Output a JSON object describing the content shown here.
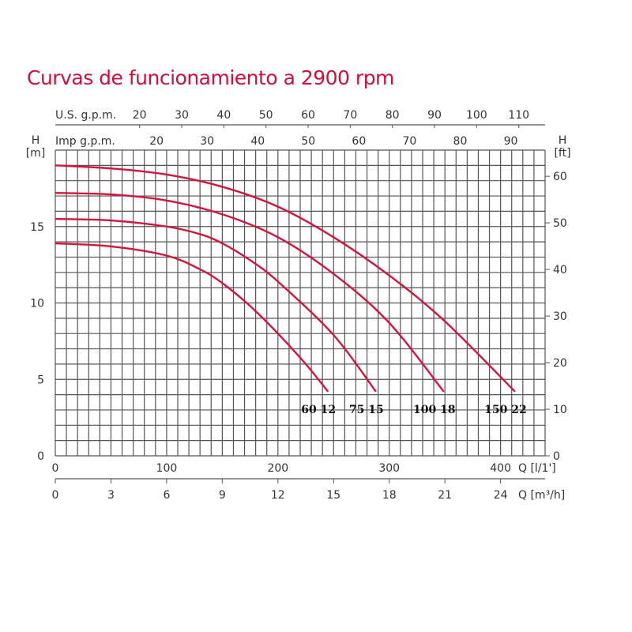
{
  "chart_data": {
    "type": "line",
    "title": "Curvas de funcionamiento a 2900 rpm",
    "x_axes": {
      "q_lmin": {
        "label": "Q [l/1']",
        "ticks": [
          0,
          100,
          200,
          300,
          400
        ],
        "range": [
          0,
          440
        ]
      },
      "q_m3h": {
        "label": "Q [m³/h]",
        "ticks": [
          0,
          3,
          6,
          9,
          12,
          15,
          18,
          21,
          24
        ]
      },
      "us_gpm": {
        "label": "U.S. g.p.m.",
        "ticks": [
          20,
          30,
          40,
          50,
          60,
          70,
          80,
          90,
          100,
          110
        ]
      },
      "imp_gpm": {
        "label": "Imp g.p.m.",
        "ticks": [
          20,
          30,
          40,
          50,
          60,
          70,
          80,
          90
        ]
      }
    },
    "y_axes": {
      "left": {
        "label_top": "H",
        "label_unit": "[m]",
        "ticks": [
          0,
          5,
          10,
          15
        ],
        "range": [
          0,
          20
        ]
      },
      "right": {
        "label_top": "H",
        "label_unit": "[ft]",
        "ticks": [
          0,
          10,
          20,
          30,
          40,
          50,
          60
        ]
      }
    },
    "grid": true,
    "curve_color": "#d4143c",
    "series": [
      {
        "name": "60 12",
        "points": [
          [
            0,
            13.9
          ],
          [
            50,
            13.7
          ],
          [
            100,
            13.1
          ],
          [
            130,
            12.2
          ],
          [
            150,
            11.3
          ],
          [
            175,
            9.8
          ],
          [
            200,
            8.0
          ],
          [
            225,
            6.0
          ],
          [
            245,
            4.2
          ]
        ]
      },
      {
        "name": "75 15",
        "points": [
          [
            0,
            15.5
          ],
          [
            50,
            15.4
          ],
          [
            100,
            15.0
          ],
          [
            130,
            14.5
          ],
          [
            150,
            13.9
          ],
          [
            175,
            12.8
          ],
          [
            200,
            11.4
          ],
          [
            250,
            7.9
          ],
          [
            288,
            4.2
          ]
        ]
      },
      {
        "name": "100 18",
        "points": [
          [
            0,
            17.2
          ],
          [
            50,
            17.1
          ],
          [
            100,
            16.7
          ],
          [
            150,
            15.8
          ],
          [
            200,
            14.3
          ],
          [
            250,
            11.9
          ],
          [
            300,
            8.7
          ],
          [
            349,
            4.2
          ]
        ]
      },
      {
        "name": "150 22",
        "points": [
          [
            0,
            19.0
          ],
          [
            50,
            18.8
          ],
          [
            100,
            18.4
          ],
          [
            150,
            17.6
          ],
          [
            200,
            16.3
          ],
          [
            250,
            14.3
          ],
          [
            300,
            11.8
          ],
          [
            350,
            8.8
          ],
          [
            413,
            4.2
          ]
        ]
      }
    ]
  }
}
